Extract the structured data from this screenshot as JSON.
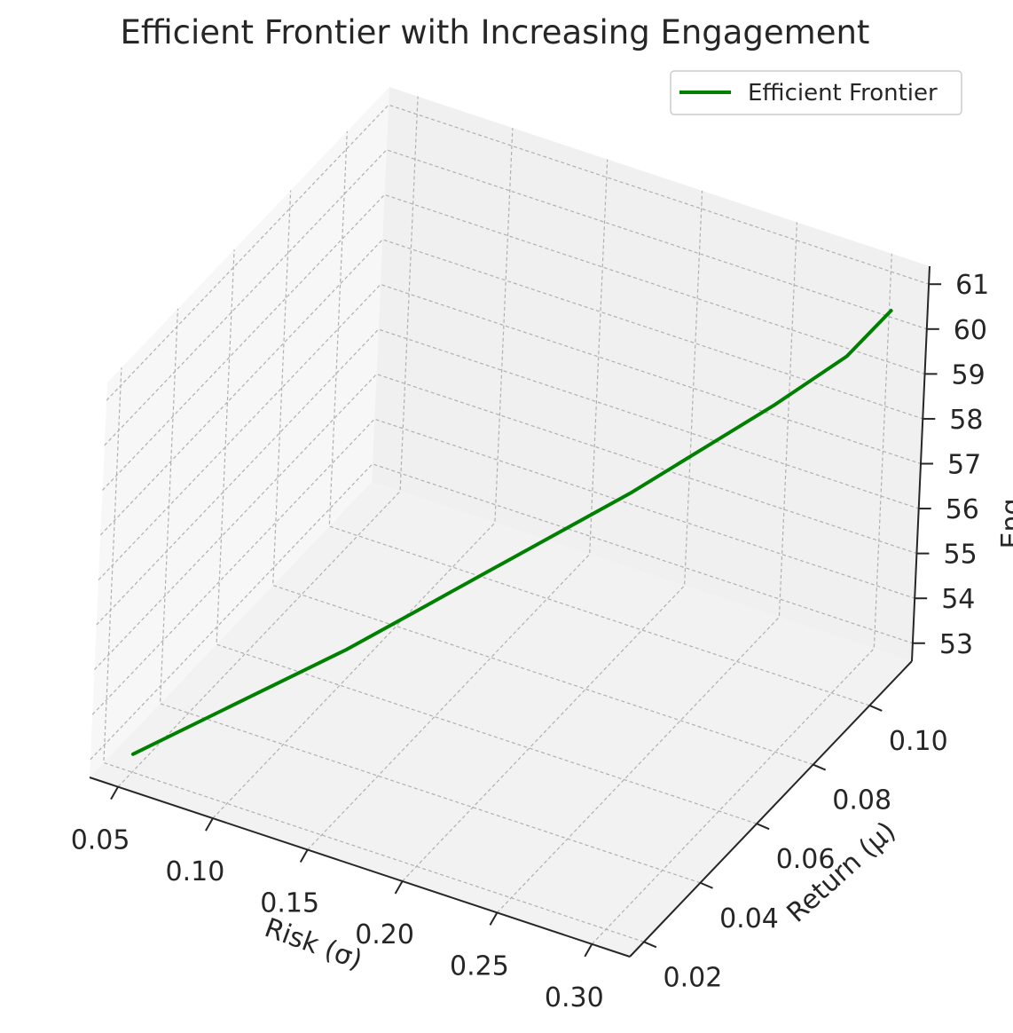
{
  "chart_data": {
    "type": "line",
    "projection": "3d",
    "title": "Efficient Frontier with Increasing Engagement",
    "xlabel": "Risk (σ)",
    "ylabel": "Return (μ)",
    "zlabel": "Eng",
    "legend": {
      "entries": [
        "Efficient Frontier"
      ],
      "placement": "top-right"
    },
    "grid": true,
    "xlim": [
      0.035,
      0.32
    ],
    "ylim": [
      0.015,
      0.115
    ],
    "zlim": [
      52.6,
      61.4
    ],
    "x_ticks": [
      "0.05",
      "0.10",
      "0.15",
      "0.20",
      "0.25",
      "0.30"
    ],
    "y_ticks": [
      "0.02",
      "0.04",
      "0.06",
      "0.08",
      "0.10"
    ],
    "z_ticks": [
      "53",
      "54",
      "55",
      "56",
      "57",
      "58",
      "59",
      "60",
      "61"
    ],
    "series": [
      {
        "name": "Efficient Frontier",
        "color": "#008000",
        "points": [
          {
            "x": 0.05,
            "y": 0.02,
            "z": 53.0
          },
          {
            "x": 0.075,
            "y": 0.028,
            "z": 53.6
          },
          {
            "x": 0.1,
            "y": 0.036,
            "z": 54.2
          },
          {
            "x": 0.125,
            "y": 0.044,
            "z": 54.8
          },
          {
            "x": 0.15,
            "y": 0.052,
            "z": 55.5
          },
          {
            "x": 0.175,
            "y": 0.06,
            "z": 56.2
          },
          {
            "x": 0.2,
            "y": 0.068,
            "z": 56.9
          },
          {
            "x": 0.225,
            "y": 0.076,
            "z": 57.6
          },
          {
            "x": 0.25,
            "y": 0.084,
            "z": 58.4
          },
          {
            "x": 0.275,
            "y": 0.092,
            "z": 59.2
          },
          {
            "x": 0.3,
            "y": 0.1,
            "z": 60.1
          },
          {
            "x": 0.315,
            "y": 0.105,
            "z": 61.0
          }
        ]
      }
    ]
  }
}
